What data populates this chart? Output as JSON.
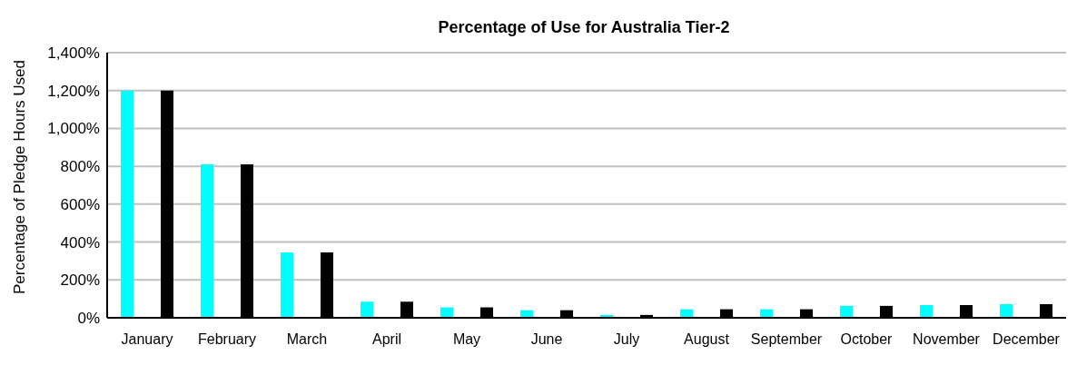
{
  "chart_data": {
    "type": "bar",
    "title": "Percentage of Use for Australia Tier-2",
    "ylabel": "Percentage of Pledge Hours Used",
    "categories": [
      "January",
      "February",
      "March",
      "April",
      "May",
      "June",
      "July",
      "August",
      "September",
      "October",
      "November",
      "December"
    ],
    "series": [
      {
        "color": "#00ffff",
        "values": [
          1200,
          810,
          345,
          85,
          55,
          40,
          15,
          45,
          45,
          63,
          67,
          72
        ]
      },
      {
        "color": "#000000",
        "values": [
          1200,
          810,
          345,
          85,
          55,
          40,
          15,
          45,
          45,
          63,
          67,
          72
        ]
      }
    ],
    "ylim": [
      0,
      1400
    ],
    "yticks": [
      {
        "value": 0,
        "label": "0%"
      },
      {
        "value": 200,
        "label": "200%"
      },
      {
        "value": 400,
        "label": "400%"
      },
      {
        "value": 600,
        "label": "600%"
      },
      {
        "value": 800,
        "label": "800%"
      },
      {
        "value": 1000,
        "label": "1,000%"
      },
      {
        "value": 1200,
        "label": "1,200%"
      },
      {
        "value": 1400,
        "label": "1,400%"
      }
    ],
    "grid": "y",
    "legend": false
  }
}
